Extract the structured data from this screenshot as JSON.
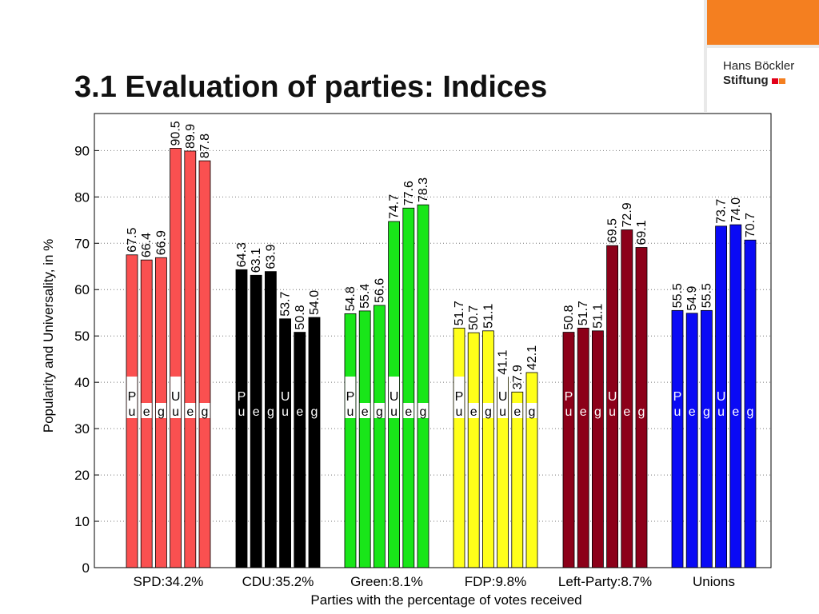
{
  "slide": {
    "title": "3.1  Evaluation of parties: Indices"
  },
  "logo": {
    "line1": "Hans Böckler",
    "line2": "Stiftung",
    "colors": [
      "#e2001a",
      "#f47f20"
    ]
  },
  "chart_data": {
    "type": "bar",
    "title": "",
    "xlabel": "Parties with the percentage of votes received",
    "ylabel": "Popularity and Universality, in %",
    "ylim": [
      0,
      98
    ],
    "yticks": [
      0,
      10,
      20,
      30,
      40,
      50,
      60,
      70,
      80,
      90
    ],
    "grid": "horizontal dotted",
    "categories": [
      "SPD:34.2%",
      "CDU:35.2%",
      "Green:8.1%",
      "FDP:9.8%",
      "Left-Party:8.7%",
      "Unions"
    ],
    "bar_labels": [
      "Pu",
      "e",
      "g",
      "Uu",
      "e",
      "g"
    ],
    "series": [
      {
        "values": [
          67.5,
          64.3,
          54.8,
          51.7,
          50.8,
          55.5
        ]
      },
      {
        "values": [
          66.4,
          63.1,
          55.4,
          50.7,
          51.7,
          54.9
        ]
      },
      {
        "values": [
          66.9,
          63.9,
          56.6,
          51.1,
          51.1,
          55.5
        ]
      },
      {
        "values": [
          90.5,
          53.7,
          74.7,
          41.1,
          69.5,
          73.7
        ]
      },
      {
        "values": [
          89.9,
          50.8,
          77.6,
          37.9,
          72.9,
          74.0
        ]
      },
      {
        "values": [
          87.8,
          54.0,
          78.3,
          42.1,
          69.1,
          70.7
        ]
      }
    ],
    "value_labels": [
      [
        "67.5",
        "66.4",
        "66.9",
        "90.5",
        "89.9",
        "87.8"
      ],
      [
        "64.3",
        "63.1",
        "63.9",
        "53.7",
        "50.8",
        "54.0"
      ],
      [
        "54.8",
        "55.4",
        "56.6",
        "74.7",
        "77.6",
        "78.3"
      ],
      [
        "51.7",
        "50.7",
        "51.1",
        "41.1",
        "37.9",
        "42.1"
      ],
      [
        "50.8",
        "51.7",
        "51.1",
        "69.5",
        "72.9",
        "69.1"
      ],
      [
        "55.5",
        "54.9",
        "55.5",
        "73.7",
        "74.0",
        "70.7"
      ]
    ],
    "group_colors": [
      "#fa5050",
      "#000000",
      "#19e619",
      "#ffff1a",
      "#8c0019",
      "#0a0af5"
    ],
    "label_text_colors": [
      "#000000",
      "#ffffff",
      "#000000",
      "#000000",
      "#ffffff",
      "#ffffff"
    ]
  }
}
